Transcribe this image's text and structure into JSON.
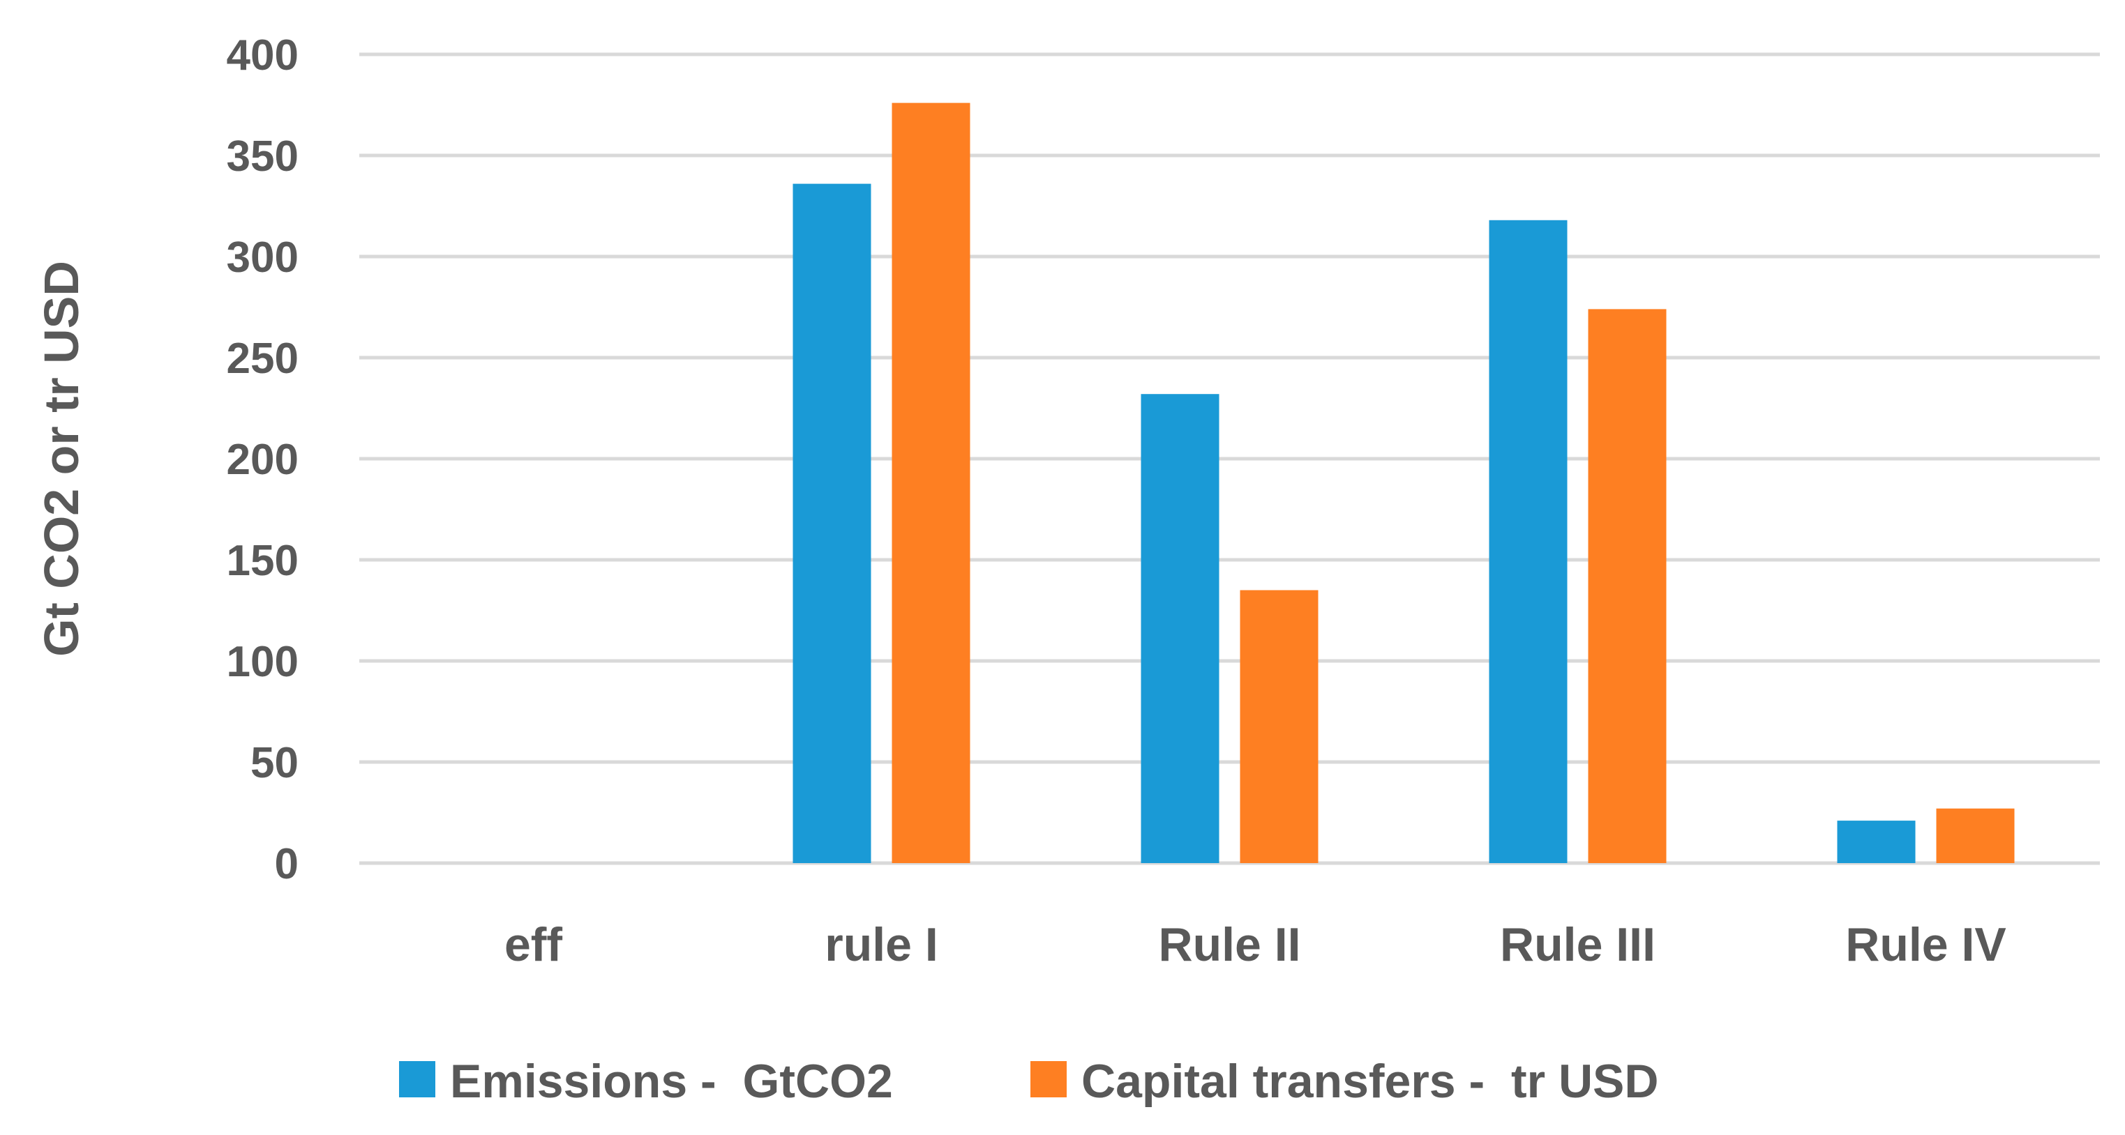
{
  "chart_data": {
    "type": "bar",
    "categories": [
      "eff",
      "rule I",
      "Rule II",
      "Rule III",
      "Rule IV"
    ],
    "series": [
      {
        "name": "Emissions -  GtCO2",
        "values": [
          0,
          336,
          232,
          318,
          21
        ],
        "color": "#1a9ad6"
      },
      {
        "name": "Capital transfers -  tr USD",
        "values": [
          0,
          376,
          135,
          274,
          27
        ],
        "color": "#fe7f22"
      }
    ],
    "ylabel": "Gt CO2 or tr USD",
    "xlabel": "",
    "ylim": [
      0,
      400
    ],
    "yticks": [
      0,
      50,
      100,
      150,
      200,
      250,
      300,
      350,
      400
    ],
    "grid": true,
    "legend_position": "bottom"
  }
}
